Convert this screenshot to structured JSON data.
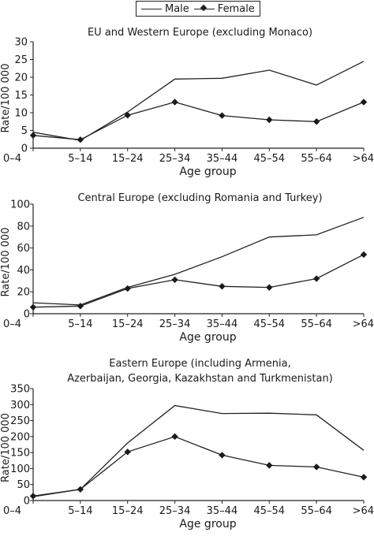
{
  "legend": {
    "male": "Male",
    "female": "Female"
  },
  "chart_data": [
    {
      "type": "line",
      "title": "EU and Western Europe (excluding Monaco)",
      "xlabel": "Age group",
      "ylabel": "Rate/100 000",
      "categories": [
        "0–4",
        "5–14",
        "15–24",
        "25–34",
        "35–44",
        "45–54",
        "55–64",
        ">64"
      ],
      "ylim": [
        0,
        30
      ],
      "yticks": [
        0,
        5,
        10,
        15,
        20,
        25,
        30
      ],
      "series": [
        {
          "name": "Male",
          "values": [
            4.5,
            2.2,
            10.2,
            19.5,
            19.7,
            22.0,
            17.8,
            24.5
          ]
        },
        {
          "name": "Female",
          "values": [
            3.6,
            2.4,
            9.3,
            13.0,
            9.2,
            8.0,
            7.5,
            13.0
          ]
        }
      ]
    },
    {
      "type": "line",
      "title": "Central Europe (excluding Romania and Turkey)",
      "xlabel": "Age group",
      "ylabel": "Rate/100 000",
      "categories": [
        "0–4",
        "5–14",
        "15–24",
        "25–34",
        "35–44",
        "45–54",
        "55–64",
        ">64"
      ],
      "ylim": [
        0,
        100
      ],
      "yticks": [
        0,
        20,
        40,
        60,
        80,
        100
      ],
      "series": [
        {
          "name": "Male",
          "values": [
            10,
            8,
            24,
            36,
            52,
            70,
            72,
            88
          ]
        },
        {
          "name": "Female",
          "values": [
            6,
            7,
            23,
            31,
            25,
            24,
            32,
            54
          ]
        }
      ]
    },
    {
      "type": "line",
      "title": "Eastern Europe (including Armenia,\nAzerbaijan, Georgia, Kazakhstan and Turkmenistan)",
      "xlabel": "Age group",
      "ylabel": "Rate/100 000",
      "categories": [
        "0–4",
        "5–14",
        "15–24",
        "25–34",
        "35–44",
        "45–54",
        "55–64",
        ">64"
      ],
      "ylim": [
        0,
        350
      ],
      "yticks": [
        0,
        50,
        100,
        150,
        200,
        250,
        300,
        350
      ],
      "series": [
        {
          "name": "Male",
          "values": [
            12,
            35,
            180,
            297,
            272,
            273,
            268,
            157
          ]
        },
        {
          "name": "Female",
          "values": [
            14,
            35,
            152,
            200,
            142,
            110,
            105,
            73
          ]
        }
      ]
    }
  ]
}
